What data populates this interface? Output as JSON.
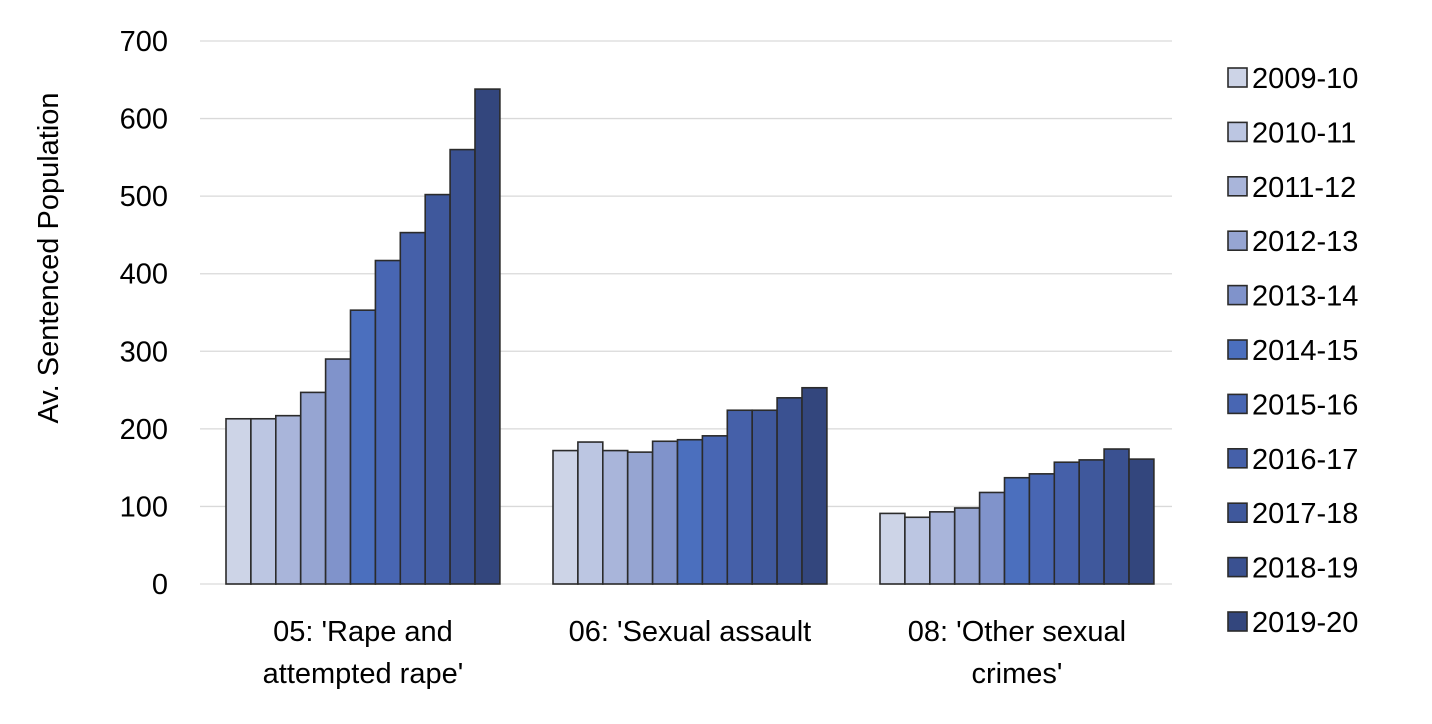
{
  "chart_data": {
    "type": "bar",
    "title": "",
    "xlabel": "",
    "ylabel": "Av. Sentenced Population",
    "ylim": [
      0,
      700
    ],
    "yticks": [
      0,
      100,
      200,
      300,
      400,
      500,
      600,
      700
    ],
    "grid": true,
    "legend_position": "right",
    "categories": [
      [
        "05: 'Rape and",
        "attempted rape'"
      ],
      [
        "06: 'Sexual assault"
      ],
      [
        "08: 'Other sexual",
        "crimes'"
      ]
    ],
    "series": [
      {
        "name": "2009-10",
        "color": "#cdd4e7",
        "values": [
          213,
          172,
          91
        ]
      },
      {
        "name": "2010-11",
        "color": "#bcc6e2",
        "values": [
          213,
          183,
          86
        ]
      },
      {
        "name": "2011-12",
        "color": "#a9b5da",
        "values": [
          217,
          172,
          93
        ]
      },
      {
        "name": "2012-13",
        "color": "#96a5d2",
        "values": [
          247,
          170,
          98
        ]
      },
      {
        "name": "2013-14",
        "color": "#8093cb",
        "values": [
          290,
          184,
          118
        ]
      },
      {
        "name": "2014-15",
        "color": "#4b6fbe",
        "values": [
          353,
          186,
          137
        ]
      },
      {
        "name": "2015-16",
        "color": "#4866b3",
        "values": [
          417,
          191,
          142
        ]
      },
      {
        "name": "2016-17",
        "color": "#4560a9",
        "values": [
          453,
          224,
          157
        ]
      },
      {
        "name": "2017-18",
        "color": "#3f589c",
        "values": [
          502,
          224,
          160
        ]
      },
      {
        "name": "2018-19",
        "color": "#3a5191",
        "values": [
          560,
          240,
          174
        ]
      },
      {
        "name": "2019-20",
        "color": "#33467d",
        "values": [
          638,
          253,
          161
        ]
      }
    ],
    "bar_border_color": "#2b2b2b",
    "grid_color": "#d9d9d9"
  }
}
